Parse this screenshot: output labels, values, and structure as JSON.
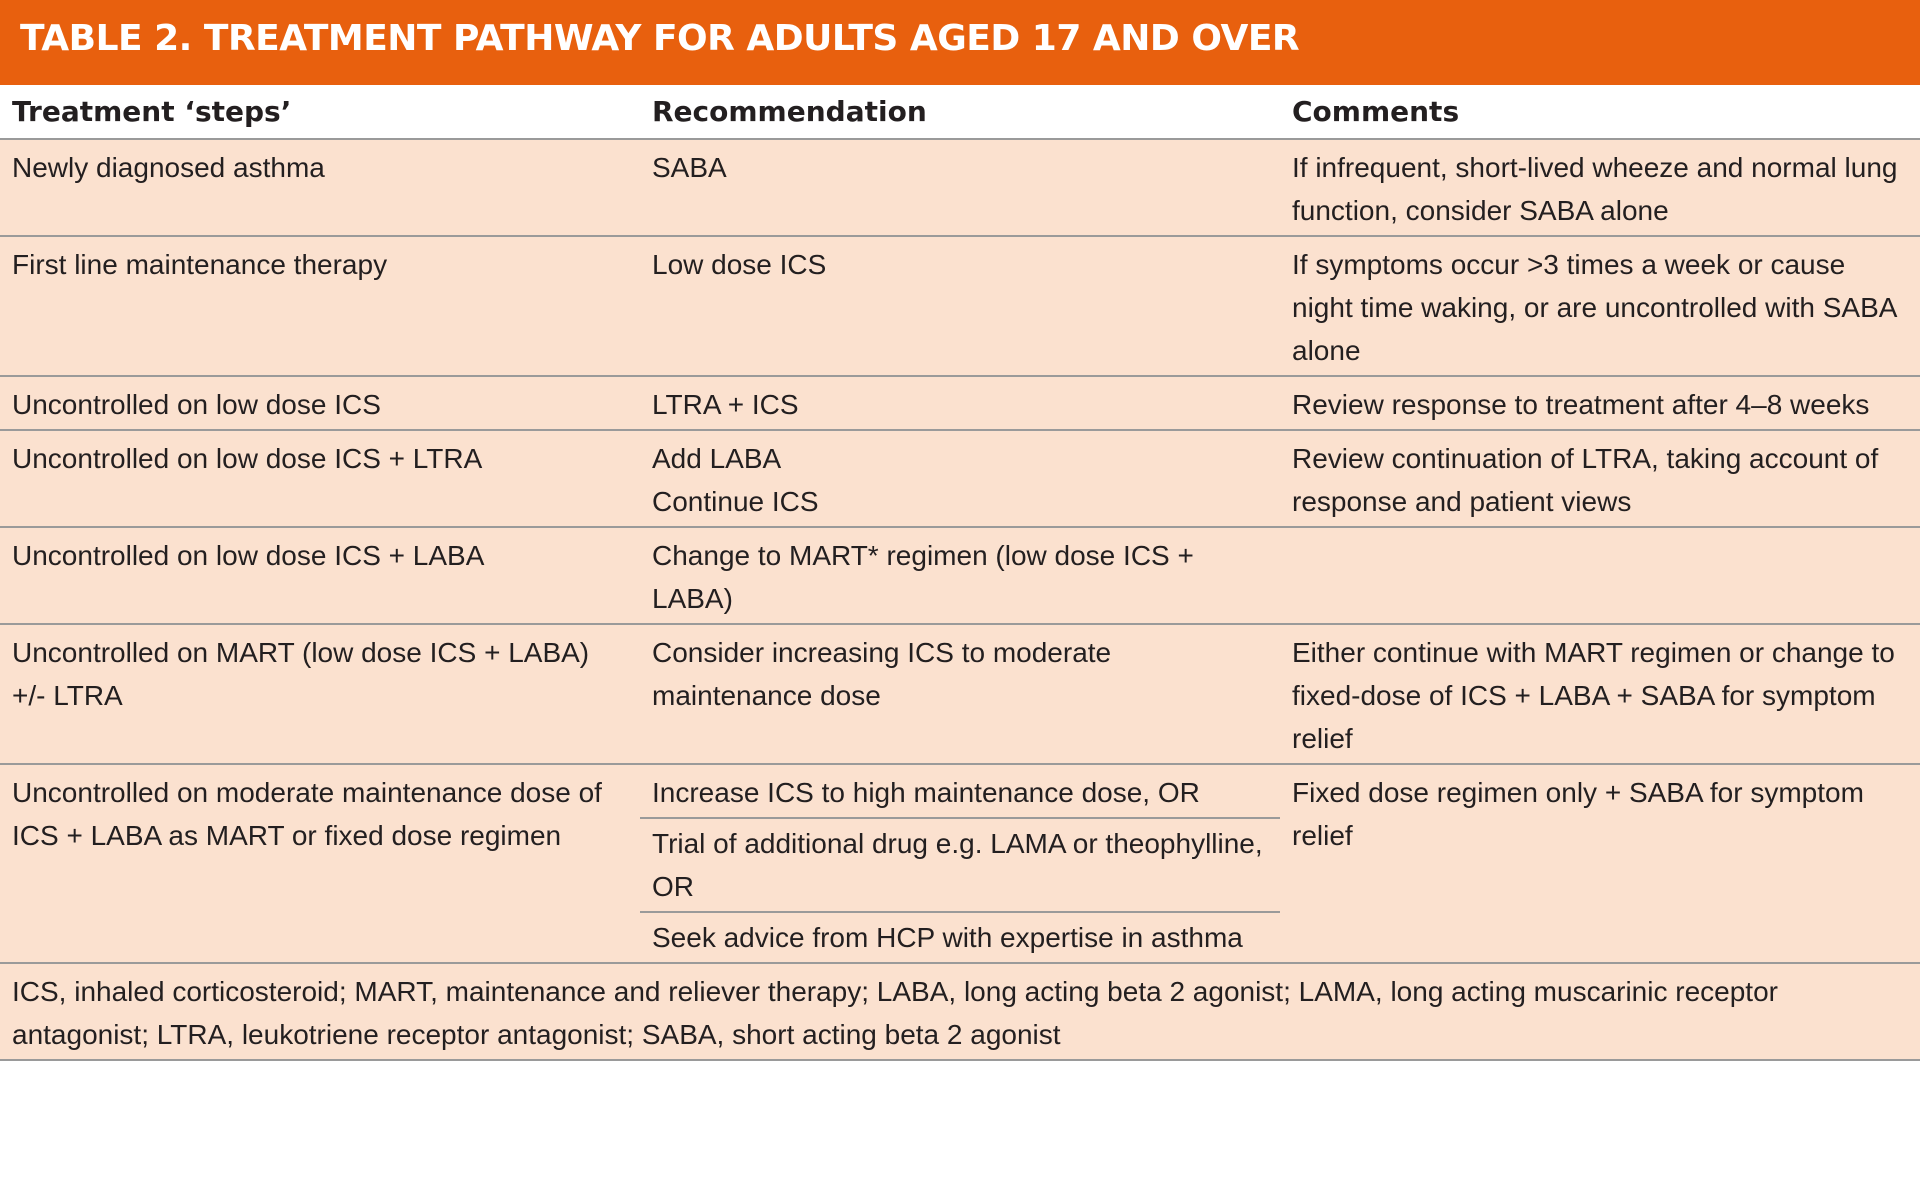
{
  "title": "TABLE 2. TREATMENT PATHWAY FOR ADULTS AGED 17 AND OVER",
  "columns": [
    "Treatment ‘steps’",
    "Recommendation",
    "Comments"
  ],
  "rows": [
    {
      "step": "Newly diagnosed asthma",
      "recommendations": [
        "SABA"
      ],
      "comment": "If infrequent, short-lived wheeze and normal lung function, consider SABA alone"
    },
    {
      "step": "First line maintenance therapy",
      "recommendations": [
        "Low dose ICS"
      ],
      "comment": "If symptoms occur >3 times a week or cause night time waking, or are uncontrolled with SABA alone"
    },
    {
      "step": "Uncontrolled on low dose ICS",
      "recommendations": [
        "LTRA + ICS"
      ],
      "comment": "Review response to treatment after 4–8 weeks"
    },
    {
      "step": "Uncontrolled on low dose ICS + LTRA",
      "recommendations": [
        "Add LABA",
        "Continue ICS"
      ],
      "comment": "Review continuation of LTRA, taking account of response and patient views"
    },
    {
      "step": "Uncontrolled on low dose ICS + LABA",
      "recommendations": [
        "Change to MART* regimen (low dose ICS + LABA)"
      ],
      "comment": ""
    },
    {
      "step": "Uncontrolled on MART (low dose ICS + LABA) +/- LTRA",
      "recommendations": [
        "Consider increasing ICS to moderate maintenance dose"
      ],
      "comment": "Either continue with MART regimen or change to fixed-dose of ICS + LABA + SABA for symptom relief"
    },
    {
      "step": "Uncontrolled on moderate maintenance dose of ICS + LABA as MART or fixed dose regimen",
      "recommendations": [
        "Increase ICS to high maintenance dose, OR",
        "Trial of additional drug e.g. LAMA or theophylline, OR",
        "Seek advice from HCP with expertise in asthma"
      ],
      "comment": "Fixed dose regimen only + SABA for symptom relief"
    }
  ],
  "footnote": "ICS, inhaled corticosteroid; MART, maintenance and reliever therapy; LABA, long acting beta 2 agonist; LAMA, long acting muscarinic receptor antagonist; LTRA, leukotriene receptor antagonist; SABA, short acting beta 2 agonist"
}
